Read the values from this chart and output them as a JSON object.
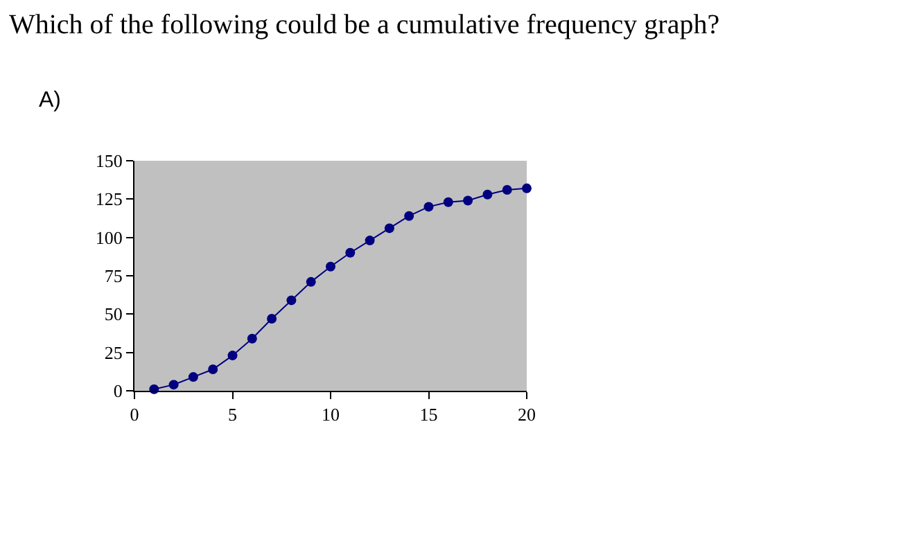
{
  "chart_data": {
    "type": "line",
    "title": "Which of the following could be a cumulative frequency graph?",
    "annotations": [
      "A)"
    ],
    "x": [
      1,
      2,
      3,
      4,
      5,
      6,
      7,
      8,
      9,
      10,
      11,
      12,
      13,
      14,
      15,
      16,
      17,
      18,
      19,
      20
    ],
    "series": [
      {
        "color": "#000080",
        "values": [
          1,
          4,
          9,
          14,
          23,
          34,
          47,
          59,
          71,
          81,
          90,
          98,
          106,
          114,
          120,
          123,
          124,
          128,
          131,
          132
        ]
      }
    ],
    "xlim": [
      0,
      20
    ],
    "xticks": [
      0,
      5,
      10,
      15,
      20
    ],
    "ylim": [
      0,
      150
    ],
    "yticks": [
      0,
      25,
      50,
      75,
      100,
      125,
      150
    ],
    "marker": "circle",
    "line_style": "solid",
    "grid": false,
    "legend": false
  }
}
